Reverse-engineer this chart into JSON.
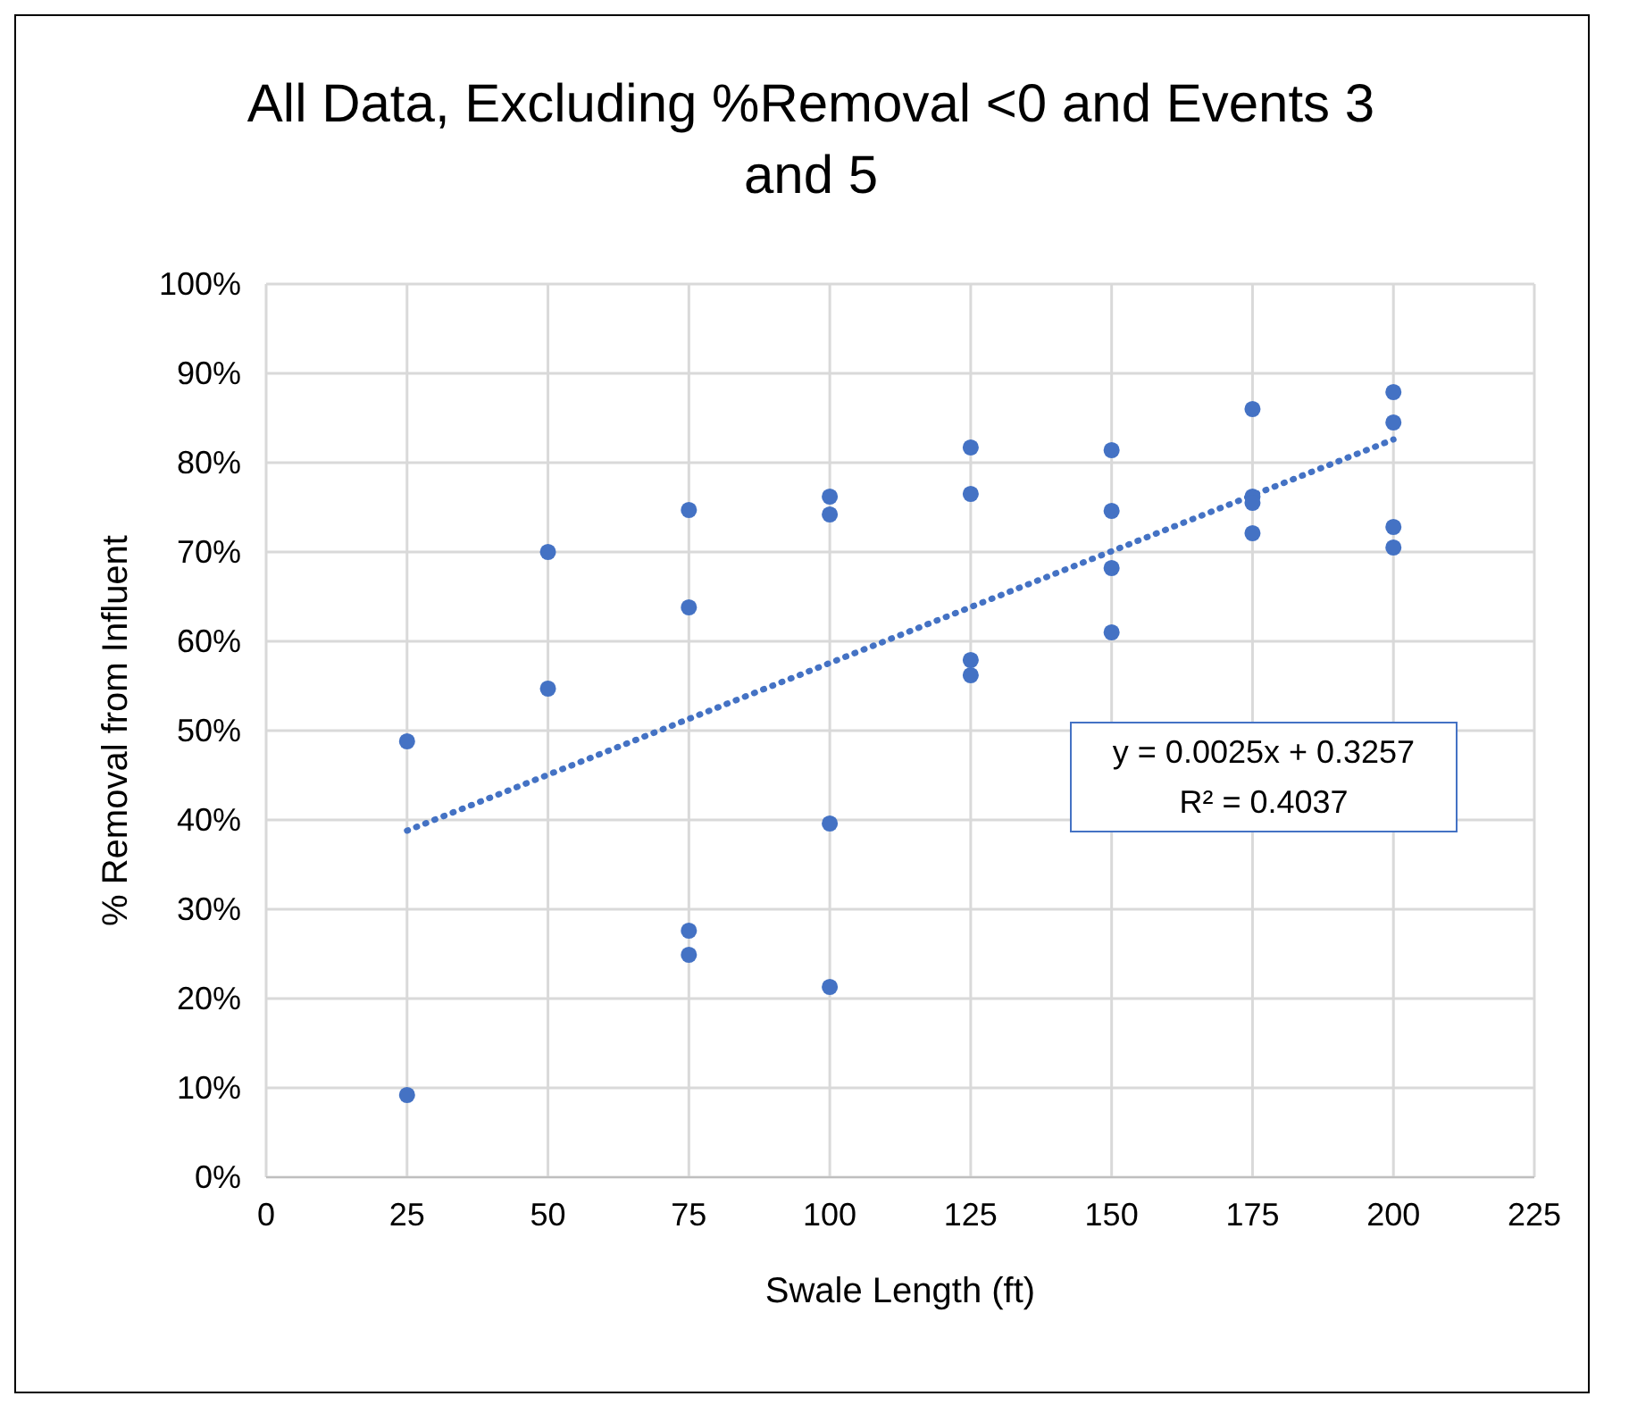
{
  "chart_data": {
    "type": "scatter",
    "title": "All Data, Excluding %Removal <0 and Events 3 and 5",
    "xlabel": "Swale Length (ft)",
    "ylabel": "% Removal from Influent",
    "annotations": [
      "y = 0.0025x + 0.3257",
      "R² = 0.4037"
    ],
    "xlim": [
      0,
      225
    ],
    "xticks": [
      0,
      25,
      50,
      75,
      100,
      125,
      150,
      175,
      200,
      225
    ],
    "ylim": [
      0,
      1
    ],
    "yticks": [
      {
        "value": 0,
        "label": "0%"
      },
      {
        "value": 0.1,
        "label": "10%"
      },
      {
        "value": 0.2,
        "label": "20%"
      },
      {
        "value": 0.3,
        "label": "30%"
      },
      {
        "value": 0.4,
        "label": "40%"
      },
      {
        "value": 0.5,
        "label": "50%"
      },
      {
        "value": 0.6,
        "label": "60%"
      },
      {
        "value": 0.7,
        "label": "70%"
      },
      {
        "value": 0.8,
        "label": "80%"
      },
      {
        "value": 0.9,
        "label": "90%"
      },
      {
        "value": 1,
        "label": "100%"
      }
    ],
    "grid": true,
    "marker": "circle",
    "series": [
      {
        "color": "#4472c4",
        "x": [
          25,
          25,
          50,
          50,
          75,
          75,
          75,
          75,
          100,
          100,
          100,
          100,
          125,
          125,
          125,
          125,
          150,
          150,
          150,
          150,
          175,
          175,
          175,
          175,
          200,
          200,
          200,
          200
        ],
        "values": [
          0.488,
          0.092,
          0.7,
          0.547,
          0.747,
          0.638,
          0.276,
          0.249,
          0.762,
          0.742,
          0.396,
          0.213,
          0.817,
          0.765,
          0.579,
          0.562,
          0.814,
          0.746,
          0.682,
          0.61,
          0.86,
          0.762,
          0.755,
          0.721,
          0.879,
          0.845,
          0.728,
          0.705
        ]
      },
      {
        "type": "line",
        "color": "#4472c4",
        "line_style": "dotted",
        "marker": "none",
        "x": [
          25,
          200
        ],
        "values": [
          0.388,
          0.826
        ]
      }
    ]
  }
}
